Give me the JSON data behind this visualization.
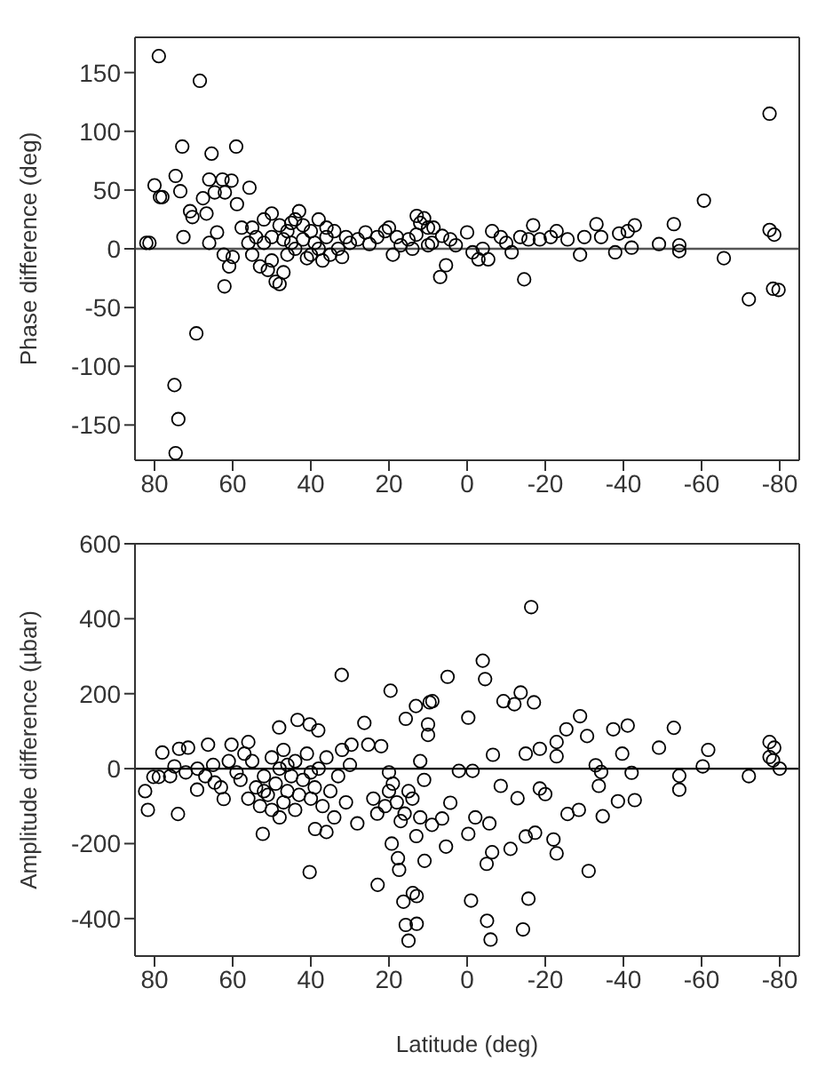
{
  "chart_data": [
    {
      "type": "scatter",
      "ylabel": "Phase difference (deg)",
      "xlim": [
        85,
        -85
      ],
      "xticks": [
        80,
        60,
        40,
        20,
        0,
        -20,
        -40,
        -60,
        -80
      ],
      "ylim": [
        -180,
        180
      ],
      "yticks": [
        -150,
        -100,
        -50,
        0,
        50,
        100,
        150
      ],
      "marker": "circle",
      "grid": false,
      "legend": false,
      "ref_lines": [
        {
          "axis": "y",
          "value": 0,
          "color": "#555555"
        }
      ],
      "series": [
        {
          "color": "#000000",
          "x": [
            82.1,
            81.3,
            78.9,
            80,
            78.6,
            78,
            72.9,
            74.6,
            73.4,
            72.6,
            70.9,
            70.3,
            68.4,
            69.3,
            74.9,
            73.9,
            74.6,
            65.4,
            59.1,
            66,
            64.6,
            62.6,
            60.3,
            62,
            58.9,
            55.7,
            67.6,
            66.7,
            66,
            64,
            62.3,
            62.1,
            60.9,
            60,
            57.7,
            55,
            53,
            52,
            51,
            50,
            49,
            48,
            47,
            50,
            46,
            45,
            44,
            43,
            42,
            41,
            40,
            39,
            38,
            37,
            36,
            35,
            34,
            33,
            32,
            31,
            30,
            52,
            54,
            48,
            46,
            44,
            50,
            47,
            45,
            42,
            38,
            36,
            40,
            55,
            56,
            28,
            26,
            25,
            23,
            21,
            20,
            19,
            18,
            17,
            15,
            13,
            12,
            11,
            10,
            9,
            14,
            12.9,
            8.6,
            6.4,
            6.9,
            5.4,
            4.3,
            0,
            -1.4,
            -2.9,
            -5.4,
            -6.4,
            -8.6,
            -11.4,
            -13.6,
            -14.6,
            -16.9,
            -18.6,
            -21.4,
            -22.9,
            -25.7,
            -28.9,
            -30,
            -33.1,
            -34.3,
            -37.9,
            -38.9,
            -41.1,
            -42.1,
            -42.9,
            -49.1,
            -52.9,
            -54.3,
            -54.3,
            -60.6,
            -65.7,
            -72.1,
            -77.4,
            -77.4,
            -78.6,
            -78.3,
            -79.7,
            10,
            2.9,
            -4,
            -10,
            -15.7
          ],
          "values": [
            5,
            5,
            164,
            54,
            44,
            44,
            87,
            62,
            49,
            10,
            32,
            27,
            143,
            -72,
            -116,
            -145,
            -174,
            81,
            87,
            59,
            48,
            59,
            58,
            48,
            38,
            52,
            43,
            30,
            5,
            14,
            -5,
            -32,
            -15,
            -7,
            18,
            -5,
            -15,
            25,
            -18,
            10,
            -28,
            -30,
            -20,
            30,
            15,
            5,
            25,
            32,
            20,
            -8,
            15,
            5,
            25,
            -10,
            10,
            -5,
            15,
            0,
            -7,
            10,
            5,
            5,
            10,
            20,
            -5,
            0,
            -10,
            8,
            22,
            8,
            0,
            18,
            -5,
            18,
            5,
            8,
            14,
            4,
            10,
            15,
            18,
            -5,
            10,
            3,
            8,
            12,
            22,
            26,
            18,
            5,
            0,
            28,
            18,
            11,
            -24,
            -14,
            8,
            14,
            -3,
            -9,
            -9,
            15,
            10,
            -3,
            10,
            -26,
            20,
            8,
            10,
            15,
            8,
            -5,
            10,
            21,
            10,
            -3,
            13,
            15,
            1,
            20,
            4,
            21,
            3,
            -2,
            41,
            -8,
            -43,
            115,
            16,
            12,
            -34,
            -35,
            3,
            3,
            0,
            5,
            8
          ]
        }
      ]
    },
    {
      "type": "scatter",
      "xlabel": "Latitude (deg)",
      "ylabel": "Amplitude difference (µbar)",
      "xlim": [
        85,
        -85
      ],
      "xticks": [
        80,
        60,
        40,
        20,
        0,
        -20,
        -40,
        -60,
        -80
      ],
      "ylim": [
        -500,
        600
      ],
      "yticks": [
        -400,
        -200,
        0,
        200,
        400,
        600
      ],
      "marker": "circle",
      "grid": false,
      "legend": false,
      "ref_lines": [
        {
          "axis": "y",
          "value": 0,
          "color": "#000000"
        }
      ],
      "series": [
        {
          "color": "#000000",
          "x": [
            82.4,
            81.7,
            80.3,
            78.9,
            78,
            74.9,
            73.7,
            71.4,
            74,
            69.1,
            66.3,
            64.6,
            62.3,
            60.3,
            56,
            52.3,
            48.1,
            43.4,
            40.3,
            40.3,
            38.1,
            38.9,
            36,
            32.1,
            29.6,
            28.1,
            26.3,
            25.3,
            22.9,
            19.6,
            19.3,
            17.7,
            15.7,
            13.1,
            9.6,
            15.7,
            15,
            16.3,
            13.9,
            17.4,
            58,
            56,
            55,
            54,
            53,
            52,
            51,
            50,
            50,
            49,
            48,
            47,
            47,
            46,
            45,
            44,
            44,
            43,
            42,
            41,
            40,
            40,
            39,
            38,
            37,
            36,
            35,
            34,
            33,
            32,
            31,
            30,
            52,
            48,
            46,
            57,
            59,
            61,
            63,
            65,
            67,
            69,
            72,
            76,
            24,
            23,
            22,
            21,
            20,
            19,
            18,
            17,
            16,
            15,
            14,
            13,
            12,
            11,
            10,
            9,
            20,
            12,
            -16.4,
            -4,
            -4.6,
            5,
            8.9,
            -0.3,
            10,
            -9.3,
            -12.1,
            -13.7,
            -17.1,
            -28.9,
            -30.7,
            -25.4,
            -22.9,
            -37.4,
            -41.1,
            -52.9,
            -49.1,
            -61.7,
            -39.7,
            -42.1,
            -42.9,
            -54.3,
            -54.3,
            -60.3,
            -72.1,
            -77.4,
            -78.6,
            -77.4,
            -78.3,
            -80,
            -31.1,
            -34.7,
            -38.6,
            -33.7,
            -28.6,
            -25.7,
            -22.9,
            -22.1,
            -17.4,
            -15.7,
            -14.3,
            -11.1,
            -15,
            -5.7,
            -6.4,
            -5,
            -5.1,
            -6,
            -1,
            -0.3,
            5.4,
            10.9,
            12.9,
            12.9,
            6.4,
            -2.1,
            -8.6,
            -12.9,
            -18.6,
            -20,
            4.3,
            2.1,
            -1.4,
            -6.6,
            -15,
            -18.6,
            -22.9,
            -32.9,
            -34.3
          ],
          "values": [
            -60,
            -110,
            -22,
            -22,
            43,
            6,
            53,
            56,
            -121,
            -56,
            64,
            -37,
            -81,
            64,
            71,
            -174,
            110,
            130,
            118,
            -276,
            102,
            -161,
            -169,
            250,
            64,
            -146,
            122,
            64,
            -310,
            208,
            -200,
            -239,
            133,
            167,
            177,
            -417,
            -459,
            -355,
            -332,
            -270,
            -30,
            -80,
            20,
            -50,
            -100,
            -20,
            -70,
            30,
            -110,
            -40,
            0,
            -90,
            50,
            -60,
            -20,
            20,
            -110,
            -70,
            -30,
            40,
            -10,
            -80,
            -50,
            0,
            -100,
            30,
            -60,
            -130,
            -20,
            50,
            -90,
            10,
            -60,
            -130,
            10,
            40,
            -10,
            20,
            -50,
            10,
            -20,
            0,
            -10,
            -20,
            -80,
            -120,
            60,
            -100,
            -60,
            -40,
            -90,
            -140,
            -120,
            -60,
            -80,
            -180,
            -130,
            -30,
            90,
            -150,
            -10,
            20,
            431,
            288,
            239,
            245,
            180,
            136,
            118,
            180,
            172,
            203,
            177,
            140,
            87,
            105,
            71,
            105,
            115,
            109,
            56,
            50,
            40,
            -11,
            -84,
            -19,
            -56,
            6,
            -20,
            71,
            56,
            31,
            22,
            0,
            -273,
            -127,
            -87,
            -46,
            -110,
            -121,
            -226,
            -189,
            -171,
            -347,
            -429,
            -214,
            -181,
            -146,
            -223,
            -254,
            -406,
            -456,
            -352,
            -174,
            -208,
            -246,
            -340,
            -414,
            -133,
            -130,
            -46,
            -79,
            -53,
            -68,
            -91,
            -6,
            -6,
            37,
            40,
            53,
            33,
            9,
            -9
          ]
        }
      ]
    }
  ]
}
